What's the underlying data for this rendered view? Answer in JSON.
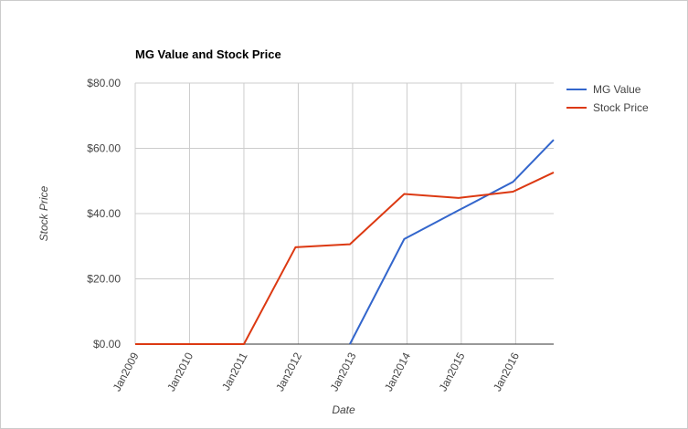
{
  "chart_data": {
    "type": "line",
    "title": "MG Value and Stock Price",
    "x_label": "Date",
    "y_label": "Stock Price",
    "x": [
      2009,
      2010,
      2011,
      2011.95,
      2012.95,
      2013.95,
      2014.95,
      2015.95,
      2016.7
    ],
    "series": [
      {
        "name": "MG Value",
        "color": "#3366cc",
        "values": [
          null,
          null,
          null,
          null,
          0,
          32.2,
          41,
          49.7,
          62.6
        ]
      },
      {
        "name": "Stock Price",
        "color": "#dc3912",
        "values": [
          0,
          0,
          0,
          29.7,
          30.6,
          46,
          44.8,
          46.7,
          52.6
        ]
      }
    ],
    "xlim": [
      2009,
      2016.7
    ],
    "xticks": [
      {
        "value": 2009,
        "label": "Jan2009"
      },
      {
        "value": 2010,
        "label": "Jan2010"
      },
      {
        "value": 2011,
        "label": "Jan2011"
      },
      {
        "value": 2012,
        "label": "Jan2012"
      },
      {
        "value": 2013,
        "label": "Jan2013"
      },
      {
        "value": 2014,
        "label": "Jan2014"
      },
      {
        "value": 2015,
        "label": "Jan2015"
      },
      {
        "value": 2016,
        "label": "Jan2016"
      }
    ],
    "ylim": [
      0,
      80
    ],
    "yticks": [
      {
        "value": 0,
        "label": "$0.00"
      },
      {
        "value": 20,
        "label": "$20.00"
      },
      {
        "value": 40,
        "label": "$40.00"
      },
      {
        "value": 60,
        "label": "$60.00"
      },
      {
        "value": 80,
        "label": "$80.00"
      }
    ],
    "grid": true,
    "legend": "right"
  }
}
